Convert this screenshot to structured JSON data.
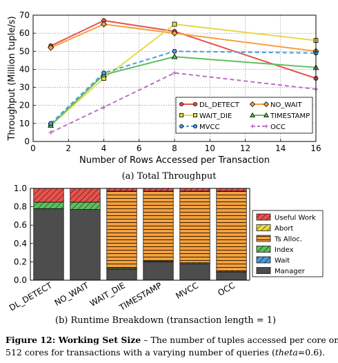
{
  "chart_data": [
    {
      "type": "line",
      "x": [
        1,
        4,
        8,
        16
      ],
      "xlabel": "Number of Rows Accessed per Transaction",
      "ylabel": "Throughput (Million tuple/s)",
      "xlim": [
        0,
        16
      ],
      "ylim": [
        0,
        70
      ],
      "xticks": [
        "0",
        "2",
        "4",
        "6",
        "8",
        "10",
        "12",
        "14",
        "16"
      ],
      "yticks": [
        "0",
        "10",
        "20",
        "30",
        "40",
        "50",
        "60",
        "70"
      ],
      "grid": true,
      "legend_position": "lower-right",
      "series": [
        {
          "name": "DL_DETECT",
          "values": [
            53,
            67,
            61,
            35
          ],
          "color": "#e8524c",
          "marker": "circle",
          "dash": "solid"
        },
        {
          "name": "NO_WAIT",
          "values": [
            52,
            65,
            60,
            50
          ],
          "color": "#f5a03d",
          "marker": "diamond",
          "dash": "solid"
        },
        {
          "name": "WAIT_DIE",
          "values": [
            9,
            35,
            65,
            56
          ],
          "color": "#e8d84a",
          "marker": "square",
          "dash": "solid"
        },
        {
          "name": "TIMESTAMP",
          "values": [
            9,
            37,
            47,
            41
          ],
          "color": "#5dbf5d",
          "marker": "triangle",
          "dash": "solid"
        },
        {
          "name": "MVCC",
          "values": [
            10,
            38,
            50,
            49
          ],
          "color": "#4a9ad9",
          "marker": "circle",
          "dash": "dashed"
        },
        {
          "name": "OCC",
          "values": [
            5,
            19,
            38,
            29
          ],
          "color": "#b970c0",
          "marker": "plus",
          "dash": "dashed"
        }
      ],
      "caption": "(a) Total Throughput"
    },
    {
      "type": "bar",
      "stacked": true,
      "categories": [
        "DL_DETECT",
        "NO_WAIT",
        "WAIT_DIE",
        "TIMESTAMP",
        "MVCC",
        "OCC"
      ],
      "ylim": [
        0,
        1.0
      ],
      "yticks": [
        "0.0",
        "0.2",
        "0.4",
        "0.6",
        "0.8",
        "1.0"
      ],
      "legend_position": "right",
      "series": [
        {
          "name": "Manager",
          "values": [
            0.78,
            0.77,
            0.12,
            0.2,
            0.18,
            0.09
          ],
          "color": "#4d4d4d",
          "hatch": "none"
        },
        {
          "name": "Wait",
          "values": [
            0.0,
            0.0,
            0.0,
            0.0,
            0.0,
            0.0
          ],
          "color": "#4a9ad9",
          "hatch": "diagonal"
        },
        {
          "name": "Index",
          "values": [
            0.07,
            0.08,
            0.01,
            0.01,
            0.01,
            0.01
          ],
          "color": "#5dbf5d",
          "hatch": "diagonal"
        },
        {
          "name": "Ts Alloc.",
          "values": [
            0.0,
            0.0,
            0.84,
            0.76,
            0.78,
            0.87
          ],
          "color": "#f5a03d",
          "hatch": "horizontal"
        },
        {
          "name": "Abort",
          "values": [
            0.0,
            0.0,
            0.0,
            0.0,
            0.0,
            0.0
          ],
          "color": "#e8d84a",
          "hatch": "diagonal"
        },
        {
          "name": "Useful Work",
          "values": [
            0.15,
            0.15,
            0.03,
            0.03,
            0.03,
            0.03
          ],
          "color": "#e8524c",
          "hatch": "diagonal"
        }
      ],
      "legend_order": [
        "Useful Work",
        "Abort",
        "Ts Alloc.",
        "Index",
        "Wait",
        "Manager"
      ],
      "caption": "(b) Runtime Breakdown (transaction length = 1)"
    }
  ],
  "figure_caption": {
    "label": "Figure 12: Working Set Size",
    "text_line1": " – The number of tuples accessed per core on",
    "text_line2_a": "512 cores for transactions with a varying number of queries (",
    "text_line2_var": "theta",
    "text_line2_b": "=0.6)."
  }
}
